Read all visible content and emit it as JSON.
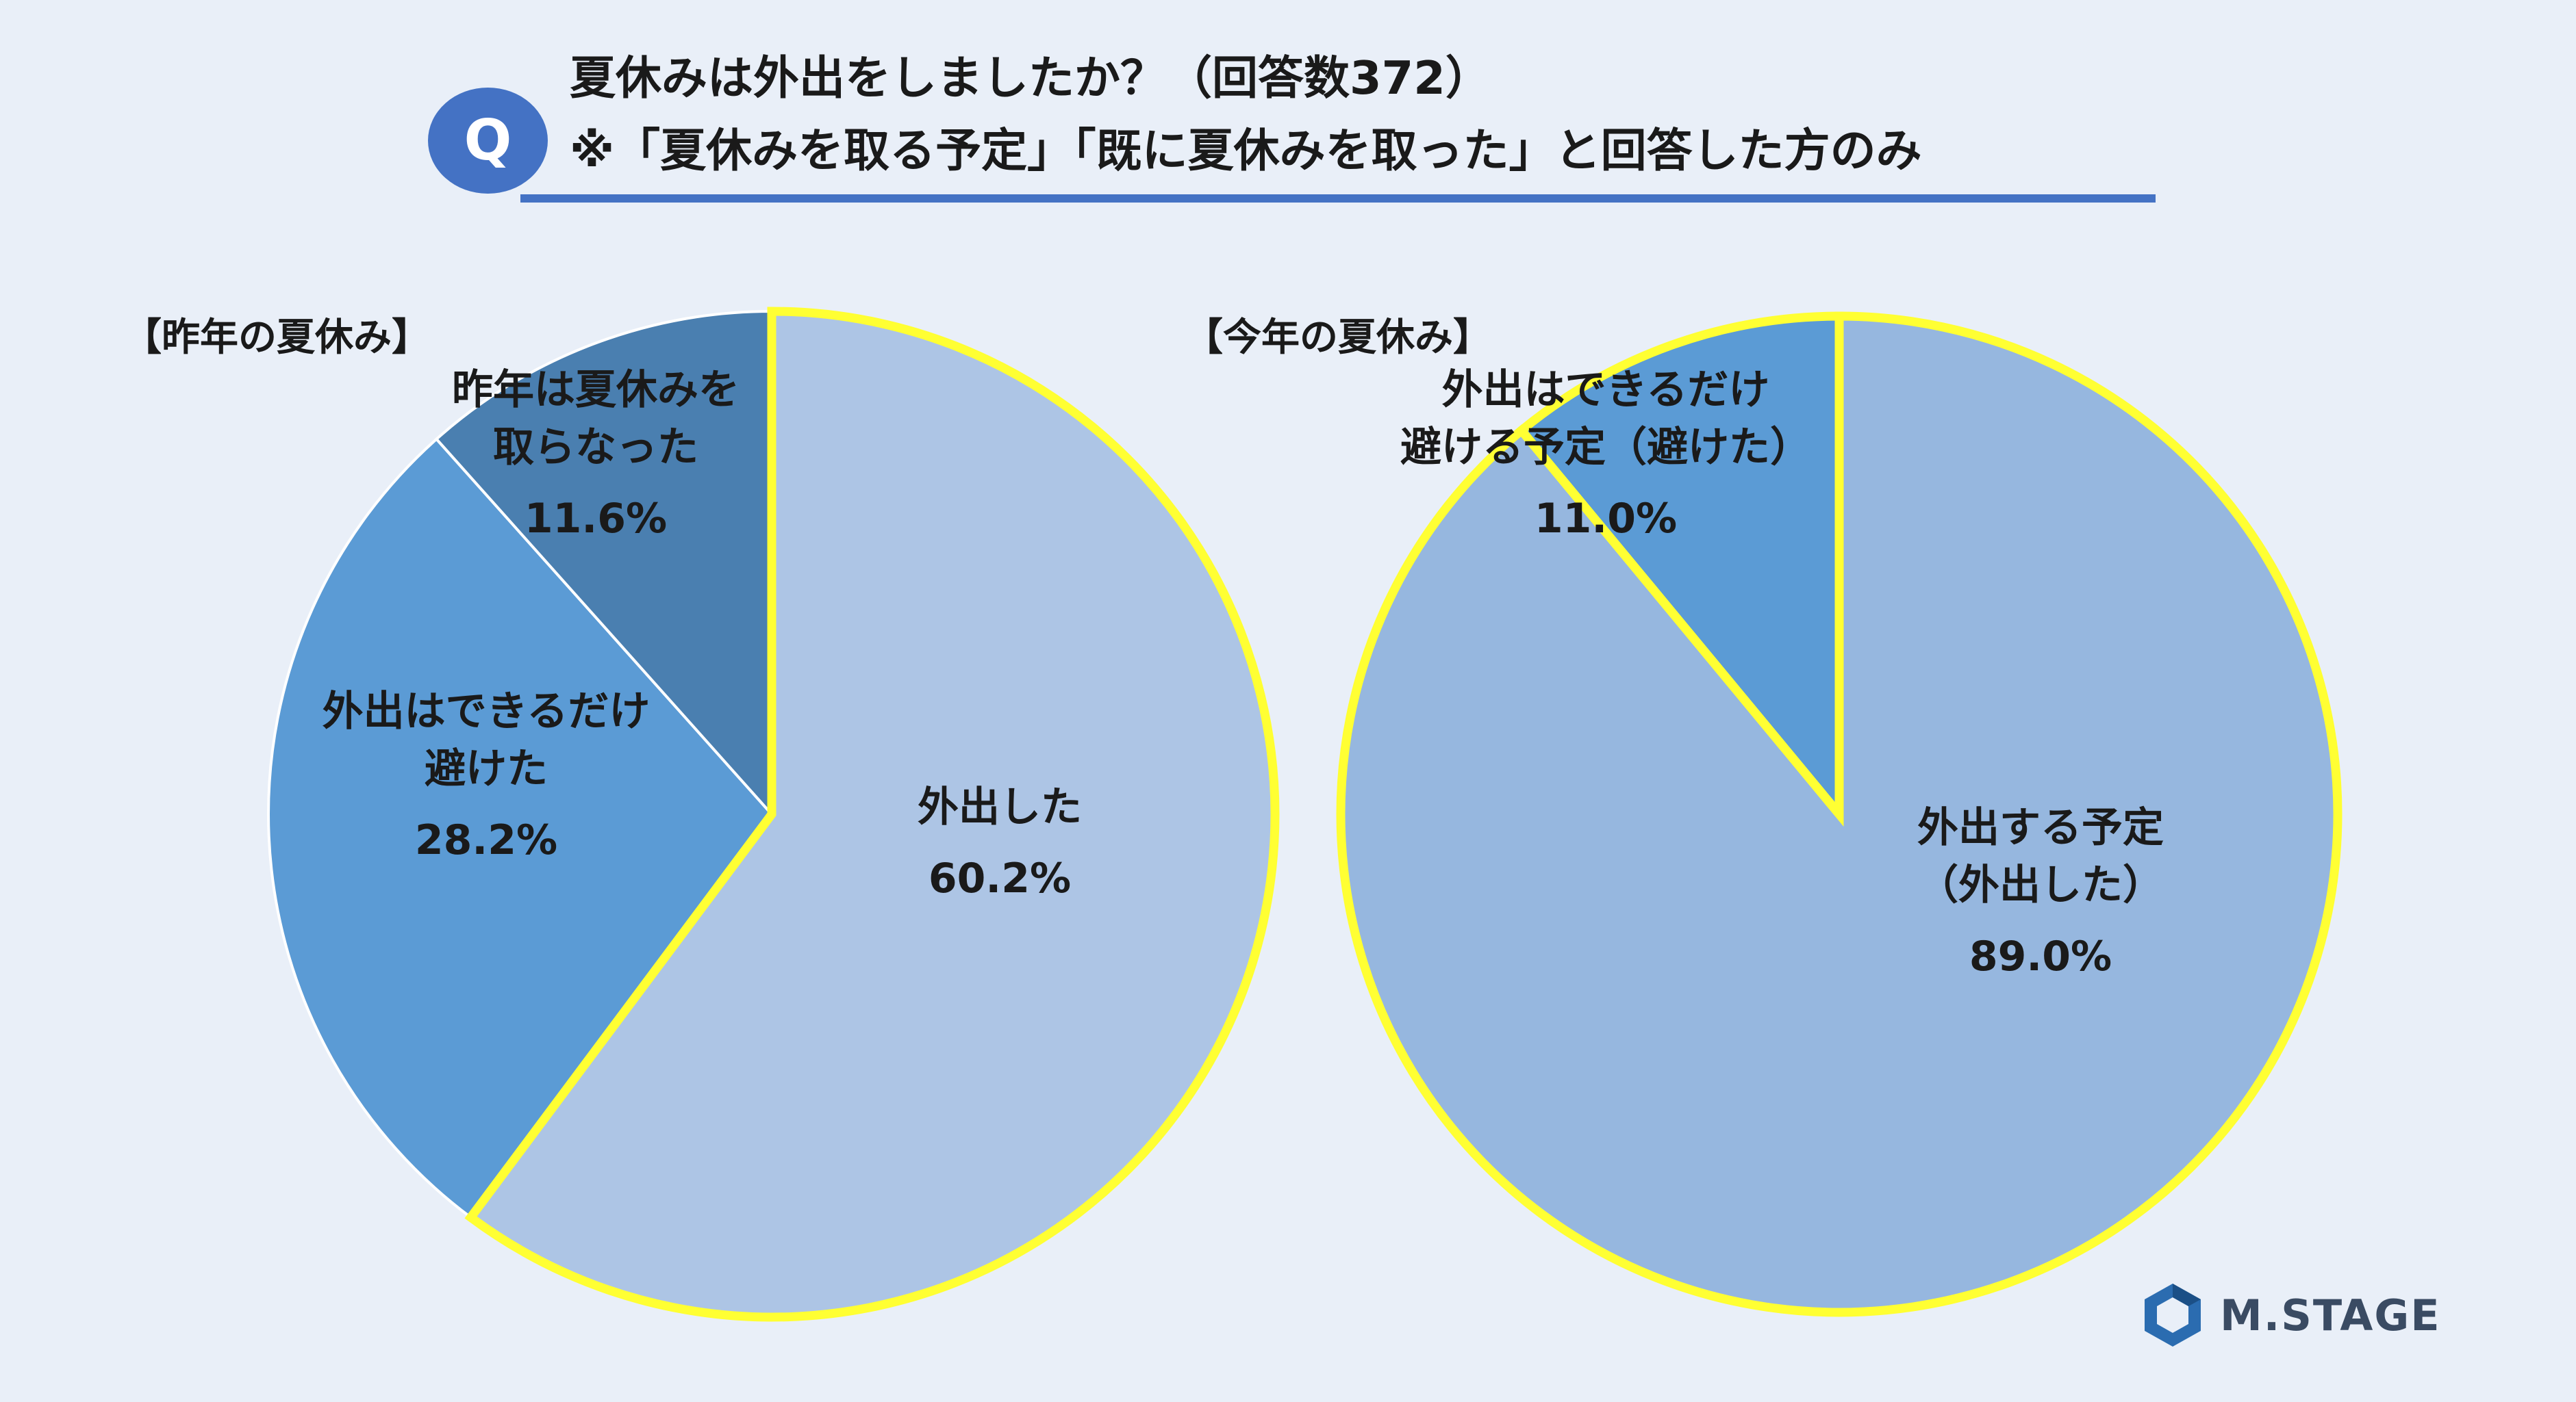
{
  "header": {
    "badge": "Q",
    "title_line1": "夏休みは外出をしましたか？（回答数372）",
    "title_line2": "※「夏休みを取る予定」「既に夏休みを取った」と回答した方のみ"
  },
  "brand": {
    "name": "M.STAGE"
  },
  "colors": {
    "highlight_border": "#ffff33",
    "slice_divider": "#ffffff"
  },
  "chart_data": [
    {
      "type": "pie",
      "title": "【昨年の夏休み】",
      "slices": [
        {
          "label_lines": [
            "外出した"
          ],
          "value": 60.2,
          "value_label": "60.2%",
          "color": "#adc5e5",
          "highlight": true
        },
        {
          "label_lines": [
            "外出はできるだけ",
            "避けた"
          ],
          "value": 28.2,
          "value_label": "28.2%",
          "color": "#5b9bd5",
          "highlight": false
        },
        {
          "label_lines": [
            "昨年は夏休みを",
            "取らなった"
          ],
          "value": 11.6,
          "value_label": "11.6%",
          "color": "#4a7fb0",
          "highlight": false
        }
      ]
    },
    {
      "type": "pie",
      "title": "【今年の夏休み】",
      "slices": [
        {
          "label_lines": [
            "外出する予定",
            "（外出した）"
          ],
          "value": 89.0,
          "value_label": "89.0%",
          "color": "#96b7df",
          "highlight": true
        },
        {
          "label_lines": [
            "外出はできるだけ",
            "避ける予定（避けた）"
          ],
          "value": 11.0,
          "value_label": "11.0%",
          "color": "#5b9bd5",
          "highlight": true
        }
      ]
    }
  ]
}
